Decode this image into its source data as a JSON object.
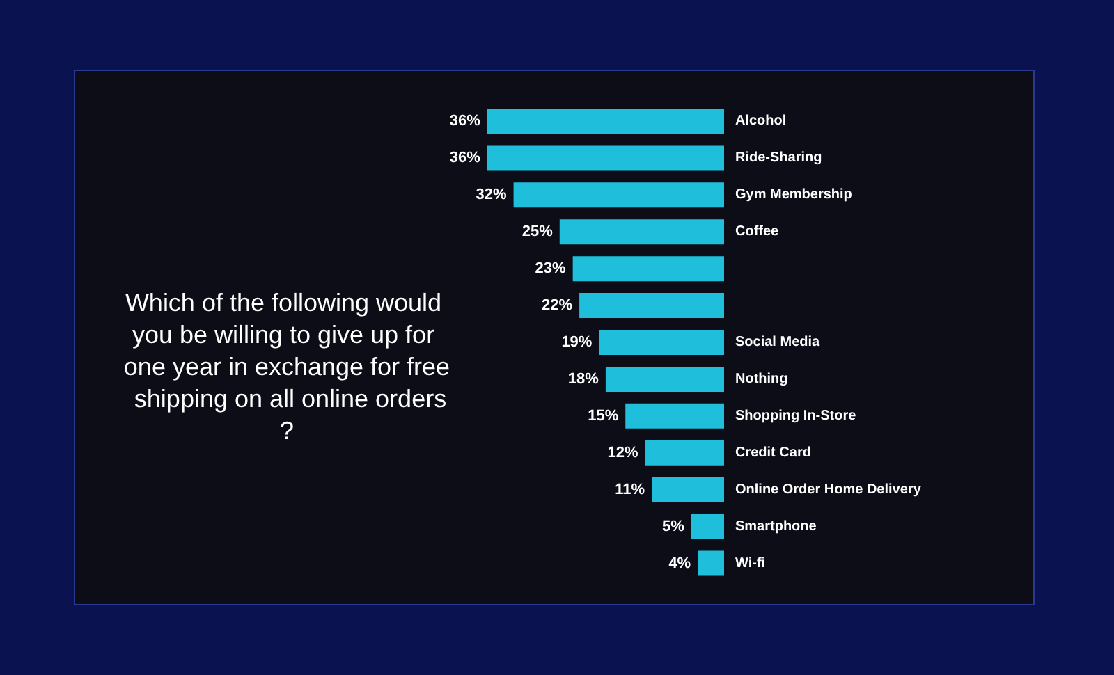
{
  "chart_data": {
    "type": "bar",
    "orientation": "horizontal",
    "title": "Which of the following would you be willing to give up for one year in exchange for free shipping on all online orders?",
    "categories": [
      "Alcohol",
      "Ride-Sharing",
      "Gym Membership",
      "Coffee",
      null,
      null,
      "Social Media",
      "Nothing",
      "Shopping In-Store",
      "Credit Card",
      "Online Order Home Delivery",
      "Smartphone",
      "Wi-fi"
    ],
    "values": [
      36,
      36,
      32,
      25,
      23,
      22,
      19,
      18,
      15,
      12,
      11,
      5,
      4
    ],
    "value_labels": [
      "36%",
      "36%",
      "32%",
      "25%",
      "23%",
      "22%",
      "19%",
      "18%",
      "15%",
      "12%",
      "11%",
      "5%",
      "4%"
    ],
    "color": "#1fbfdc"
  }
}
